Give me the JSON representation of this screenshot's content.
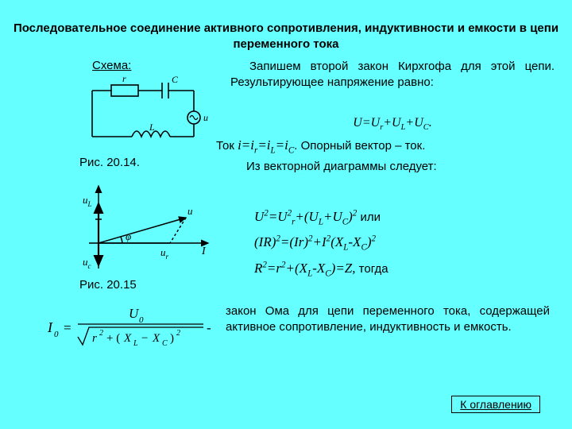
{
  "title": "Последовательное соединение активного сопротивления, индуктивности и емкости в цепи переменного тока",
  "schema_label": "Схема:",
  "fig1_cap": "Рис. 20.14.",
  "fig2_cap": "Рис. 20.15",
  "par1": "Запишем второй закон Кирхгофа для этой цепи. Результирующее напряжение равно:",
  "eq1_html": "U=U<sub>r</sub>+U<sub>L</sub>+U<sub>C</sub>.",
  "par2_pre": "Ток ",
  "par2_eq_html": "i=i<sub>r</sub>=i<sub>L</sub>=i<sub>C</sub>",
  "par2_post": ". Опорный вектор – ток.",
  "par3": "Из векторной диаграммы следует:",
  "eqA_html": "U<sup>2</sup>=U<sup>2</sup><sub>r</sub>+(U<sub>L</sub>+U<sub>C</sub>)<sup>2</sup>",
  "eqA_tail": " или",
  "eqB_html": "(IR)<sup>2</sup>=(Ir)<sup>2</sup>+I<sup>2</sup>(X<sub>L</sub>-X<sub>C</sub>)<sup>2</sup>",
  "eqC_html": "R<sup>2</sup>=r<sup>2</sup>+(X<sub>L</sub>-X<sub>C</sub>)=Z,",
  "eqC_tail": " тогда",
  "par4": "закон Ома для цепи переменного тока, содержащей активное сопротивление, индуктивность и емкость.",
  "toc_link": "К оглавлению",
  "formula": {
    "lhs_html": "I<sub>0</sub>",
    "num_html": "U<sub>0</sub>",
    "denom_html": "r<sup>&nbsp;2</sup> + ( X<sub>L</sub> − X<sub>C</sub> )<sup>2</sup>",
    "tail": "-"
  },
  "circuit": {
    "r": "r",
    "c": "C",
    "l": "L",
    "u": "u"
  },
  "vector": {
    "uL": "u",
    "uLsub": "L",
    "uC": "u",
    "uCsub": "c",
    "u": "u",
    "ur": "u",
    "ursub": "r",
    "I": "I",
    "phi": "φ"
  },
  "colors": {
    "bg": "#66ffff",
    "stroke": "#000000"
  }
}
